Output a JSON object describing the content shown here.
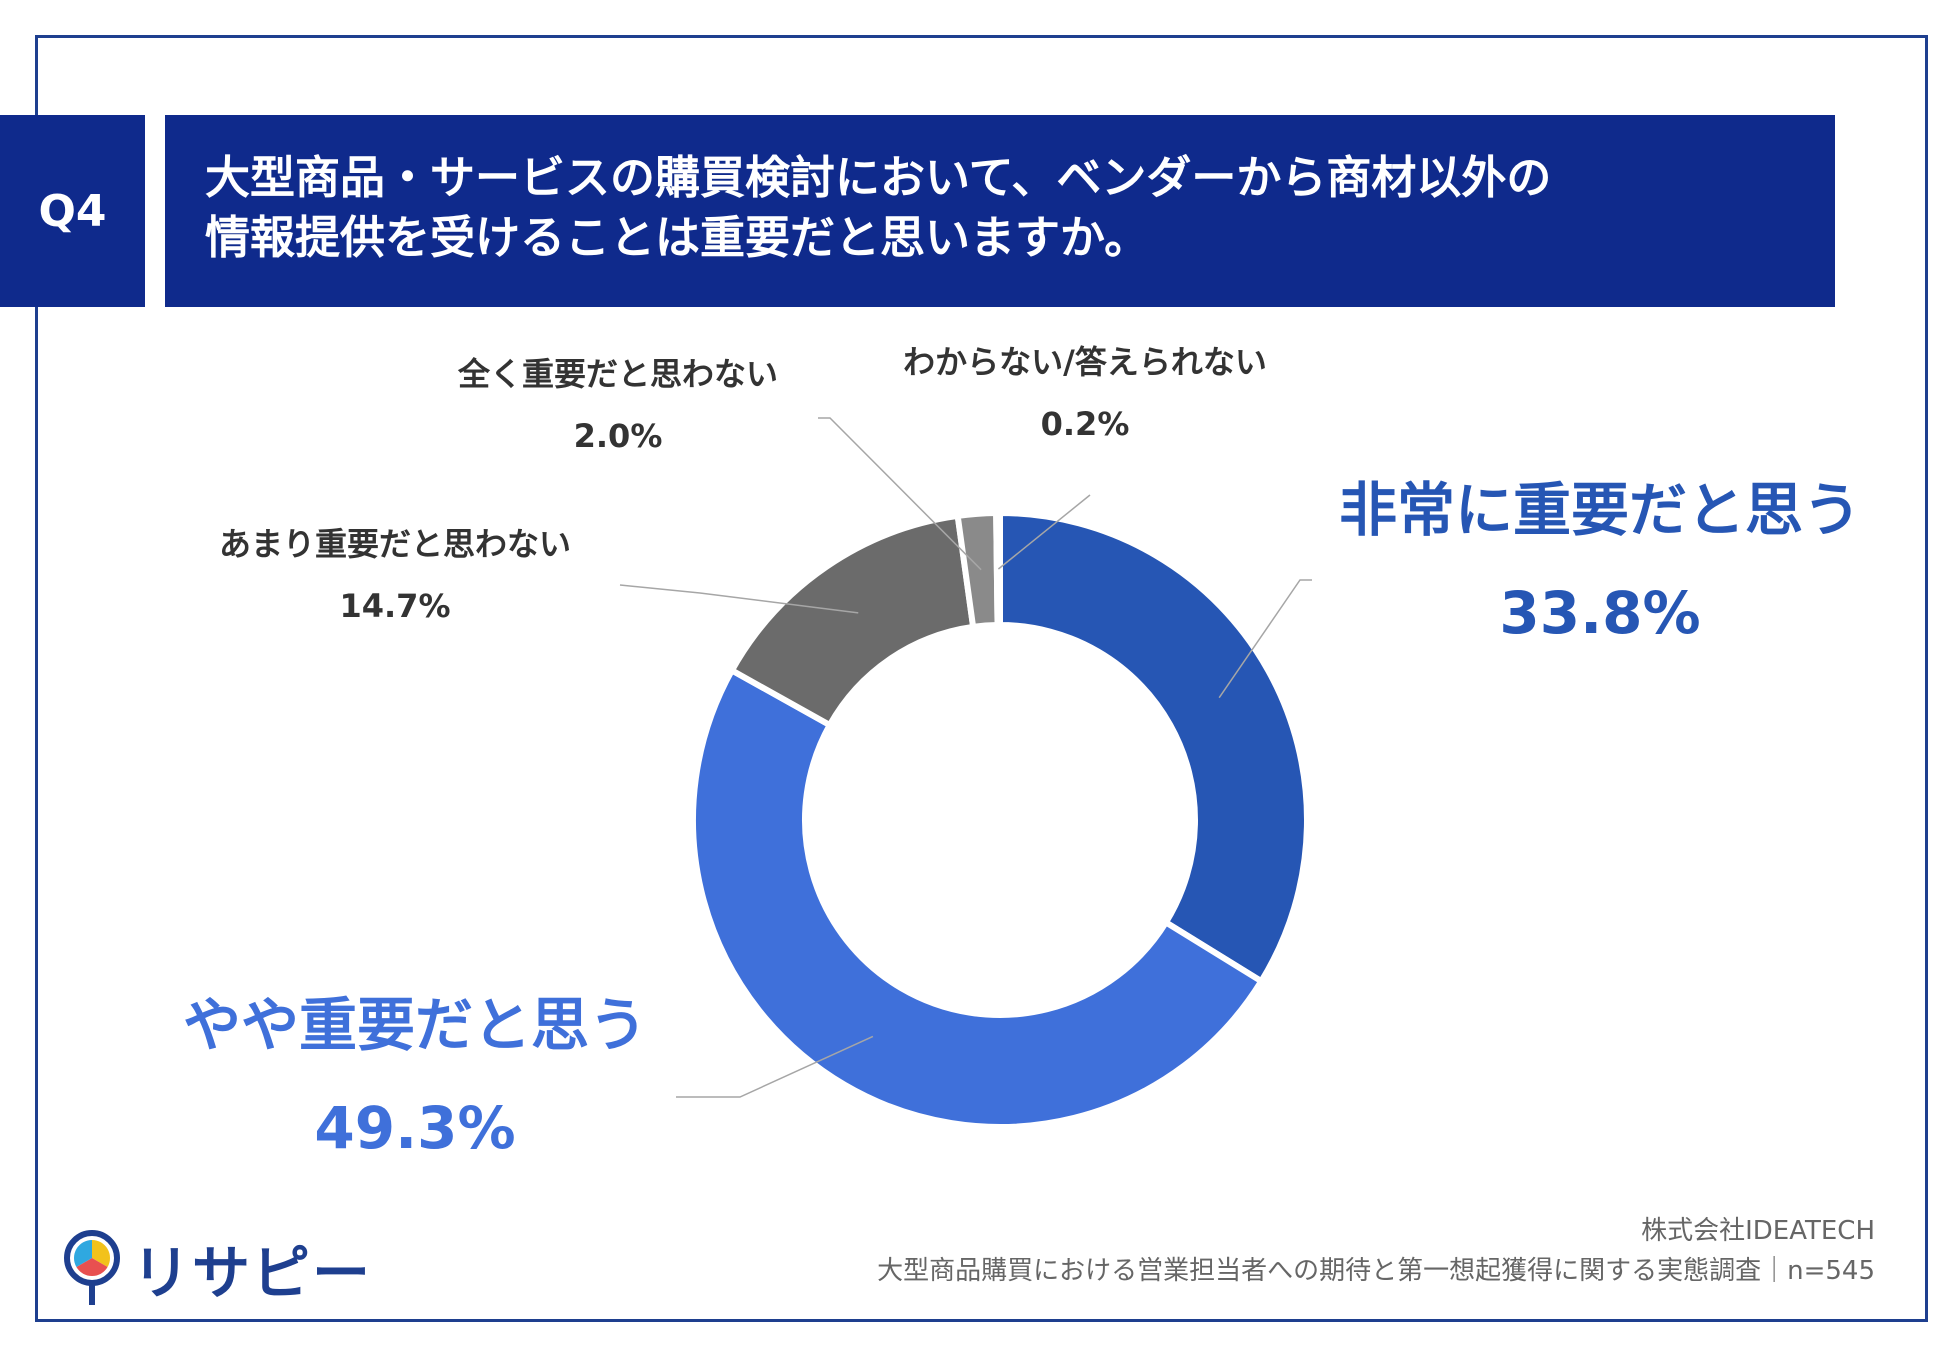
{
  "header": {
    "badge": "Q4",
    "title_line1": "大型商品・サービスの購買検討において、ベンダーから商材以外の",
    "title_line2": "情報提供を受けることは重要だと思いますか。"
  },
  "chart_data": {
    "type": "pie",
    "donut": true,
    "categories": [
      "非常に重要だと思う",
      "やや重要だと思う",
      "あまり重要だと思わない",
      "全く重要だと思わない",
      "わからない/答えられない"
    ],
    "values": [
      33.8,
      49.3,
      14.7,
      2.0,
      0.2
    ],
    "value_labels": [
      "33.8%",
      "49.3%",
      "14.7%",
      "2.0%",
      "0.2%"
    ],
    "colors": [
      "#2656b4",
      "#3f70da",
      "#6b6b6b",
      "#8a8a8a",
      "#555555"
    ],
    "label_colors": [
      "#2656b4",
      "#3f70da",
      "#333333",
      "#333333",
      "#333333"
    ]
  },
  "footer": {
    "company": "株式会社IDEATECH",
    "survey": "大型商品購買における営業担当者への期待と第一想起獲得に関する実態調査｜n=545"
  },
  "logo": {
    "text": "リサピー"
  }
}
